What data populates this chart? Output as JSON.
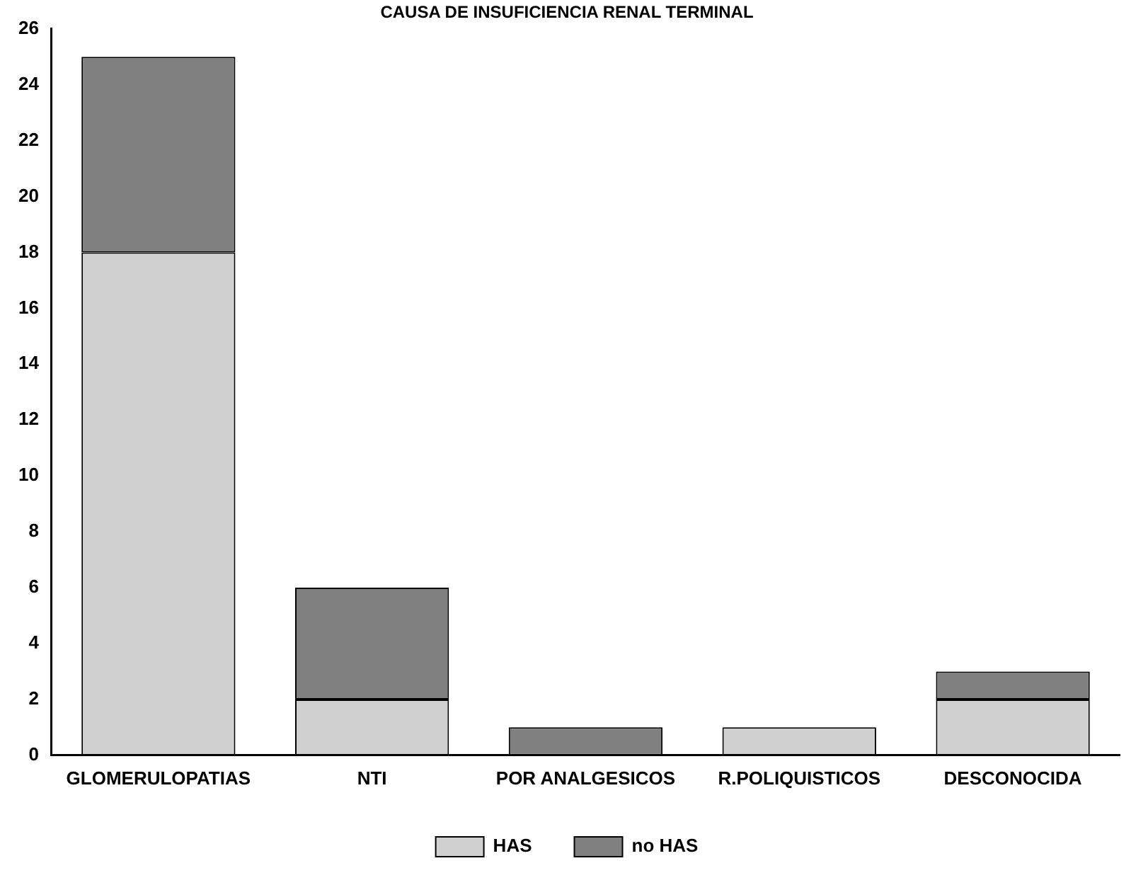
{
  "chart_data": {
    "type": "bar",
    "title": "CAUSA DE INSUFICIENCIA RENAL TERMINAL",
    "categories": [
      "GLOMERULOPATIAS",
      "NTI",
      "POR ANALGESICOS",
      "R.POLIQUISTICOS",
      "DESCONOCIDA"
    ],
    "series": [
      {
        "name": "HAS",
        "color": "#d0d0d0",
        "values": [
          18,
          2,
          0,
          1,
          2
        ]
      },
      {
        "name": "no HAS",
        "color": "#808080",
        "values": [
          7,
          4,
          1,
          0,
          1
        ]
      }
    ],
    "stacked": true,
    "ylim": [
      0,
      26
    ],
    "yticks": [
      0,
      2,
      4,
      6,
      8,
      10,
      12,
      14,
      16,
      18,
      20,
      22,
      24,
      26
    ],
    "legend": "bottom"
  }
}
